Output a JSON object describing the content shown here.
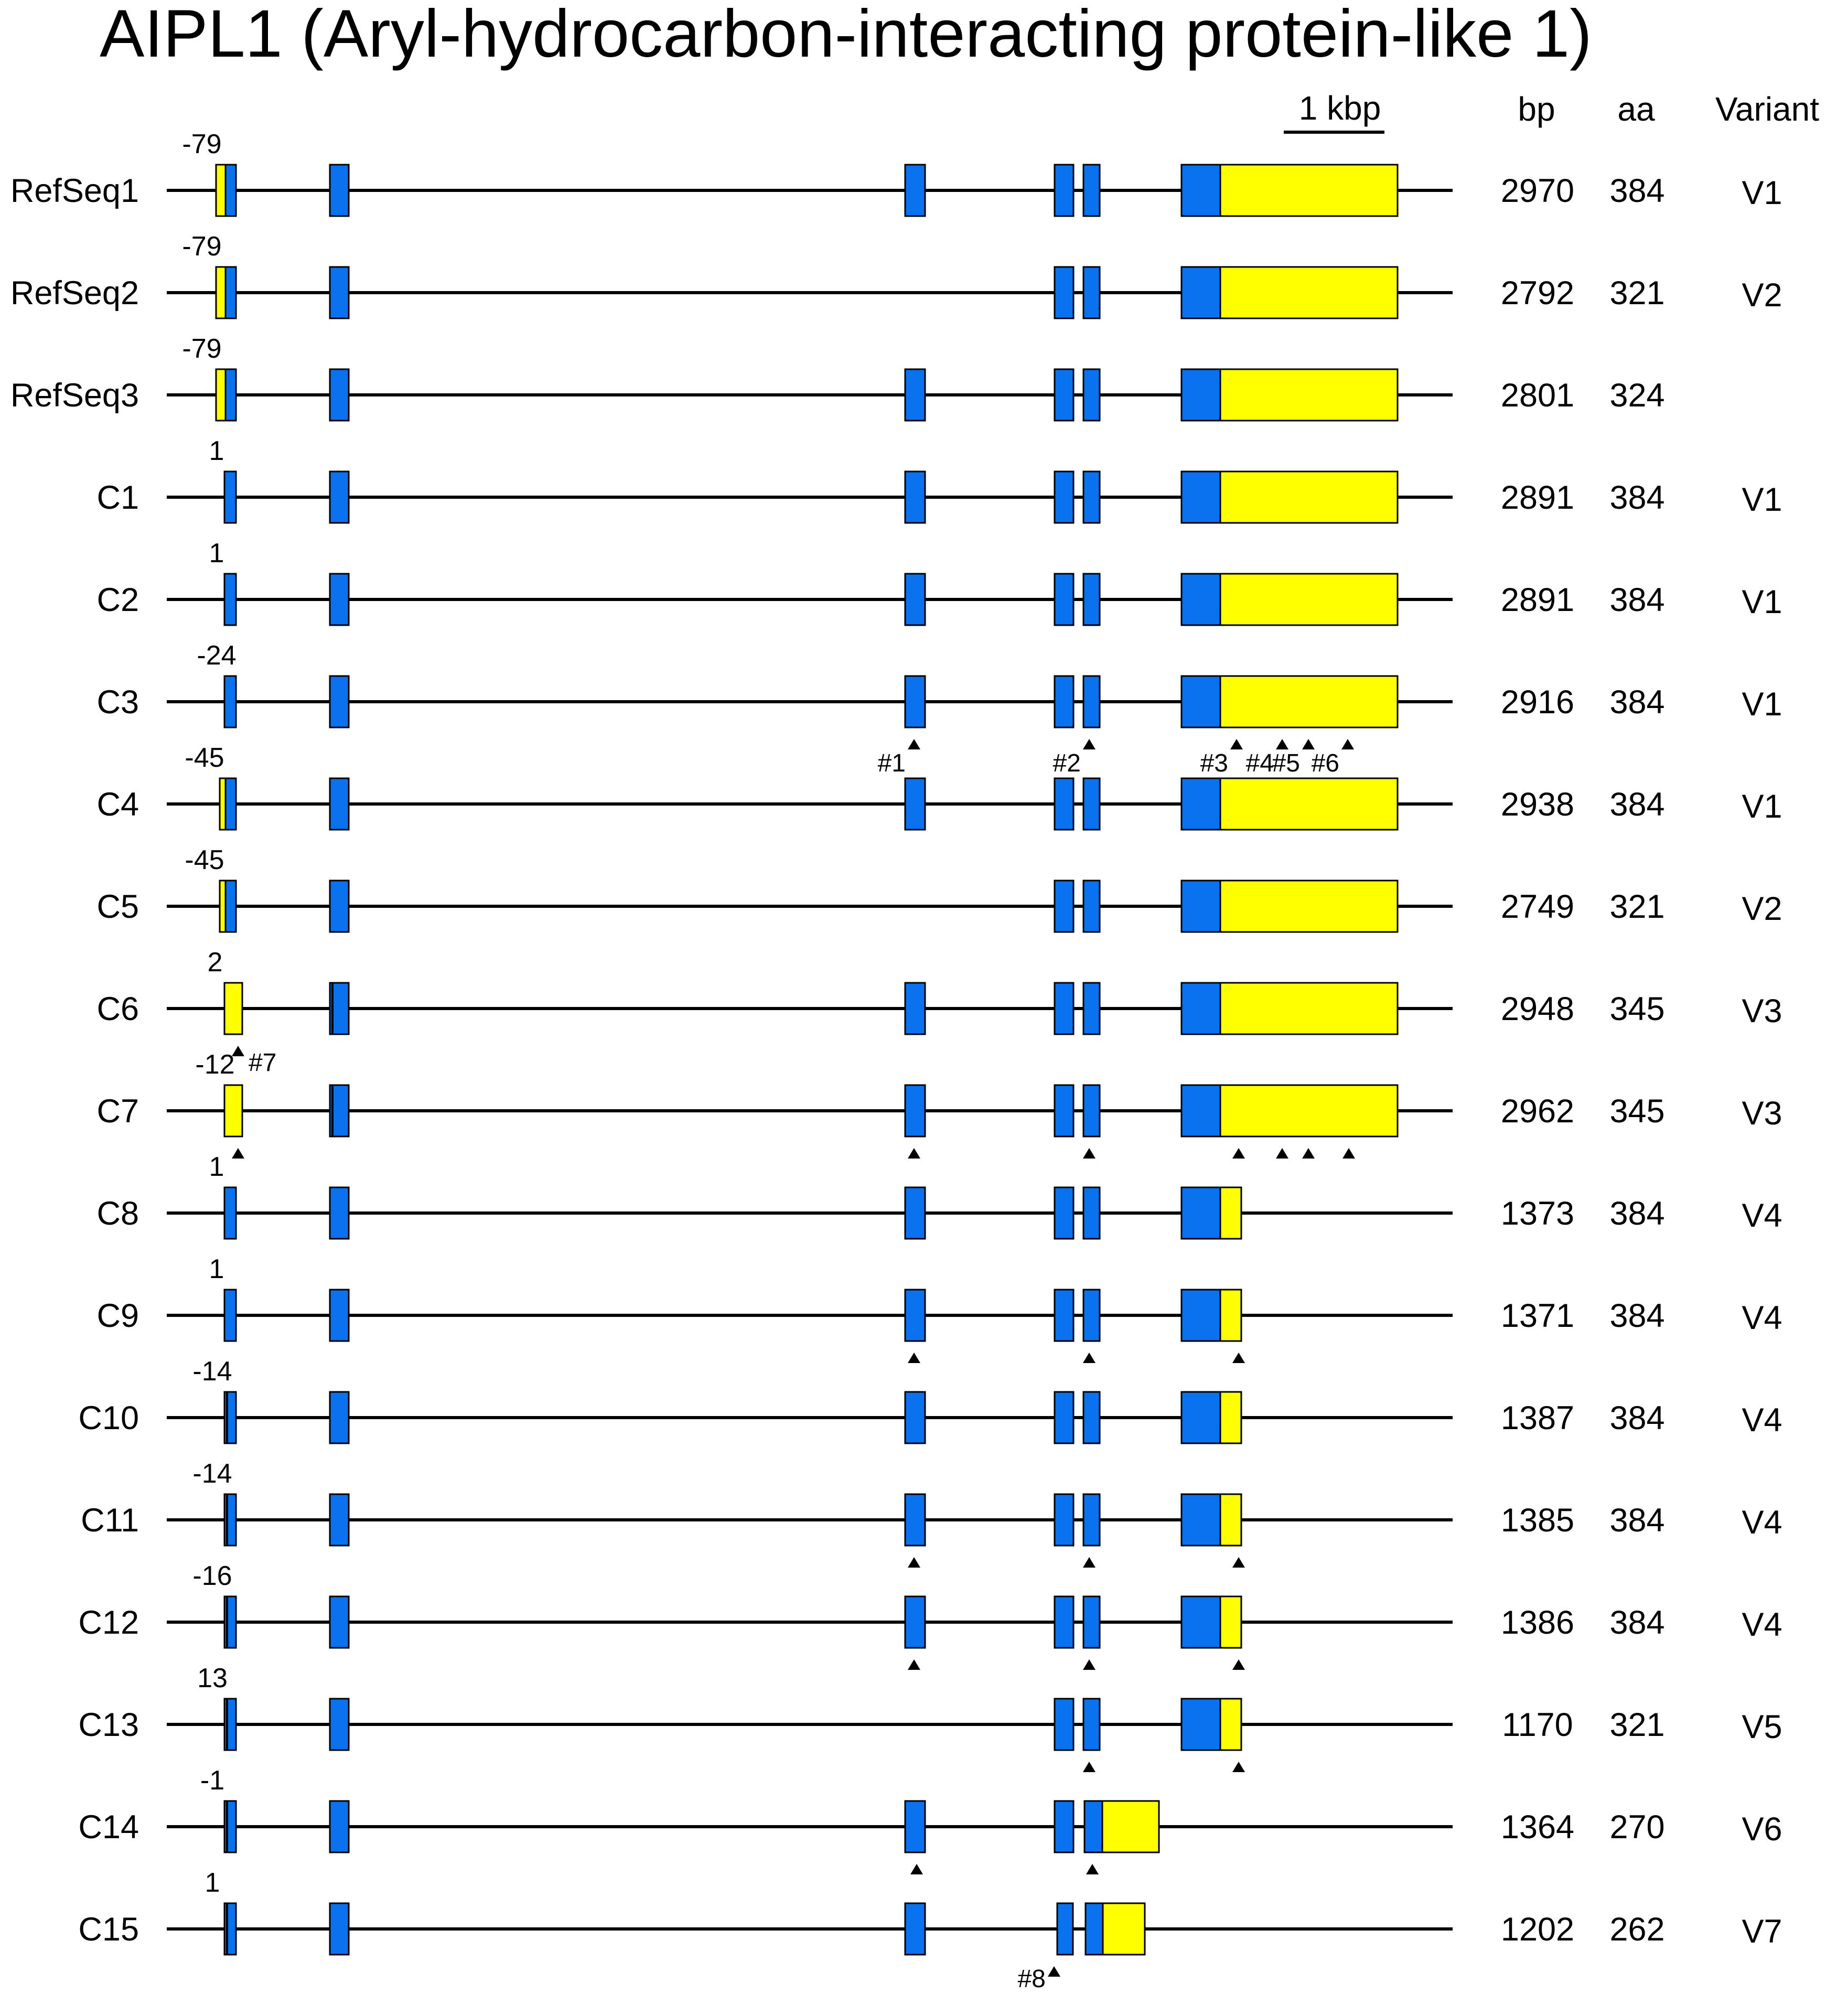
{
  "title": "AIPL1 (Aryl-hydrocarbon-interacting protein-like 1)",
  "scale_bar": {
    "label": "1 kbp"
  },
  "headers": {
    "bp": "bp",
    "aa": "aa",
    "variant": "Variant"
  },
  "colors": {
    "exon_coding": "#0a72ee",
    "exon_utr": "#ffff00",
    "intron_line": "#000000"
  },
  "rows": [
    {
      "label": "RefSeq1",
      "start": "-79",
      "bp": "2970",
      "aa": "384",
      "variant": "V1",
      "first_exon": "utr_split",
      "exon2": true,
      "exon3": true,
      "last": "long"
    },
    {
      "label": "RefSeq2",
      "start": "-79",
      "bp": "2792",
      "aa": "321",
      "variant": "V2",
      "first_exon": "utr_split",
      "exon2": true,
      "exon3": false,
      "last": "long"
    },
    {
      "label": "RefSeq3",
      "start": "-79",
      "bp": "2801",
      "aa": "324",
      "variant": "",
      "first_exon": "utr_split",
      "exon2": false,
      "exon3": true,
      "last": "long"
    },
    {
      "label": "C1",
      "start": "1",
      "bp": "2891",
      "aa": "384",
      "variant": "V1",
      "first_exon": "blue",
      "exon2": true,
      "exon3": true,
      "last": "long"
    },
    {
      "label": "C2",
      "start": "1",
      "bp": "2891",
      "aa": "384",
      "variant": "V1",
      "first_exon": "blue",
      "exon2": true,
      "exon3": true,
      "last": "long"
    },
    {
      "label": "C3",
      "start": "-24",
      "bp": "2916",
      "aa": "384",
      "variant": "V1",
      "first_exon": "blue",
      "exon2": true,
      "exon3": true,
      "last": "long",
      "markers": [
        {
          "at": "e3",
          "label": "#1"
        },
        {
          "at": "e5",
          "label": "#2"
        },
        {
          "at": "l1",
          "label": "#3"
        },
        {
          "at": "l2",
          "label": "#4"
        },
        {
          "at": "l3",
          "label": "#5"
        },
        {
          "at": "l4",
          "label": "#6"
        }
      ]
    },
    {
      "label": "C4",
      "start": "-45",
      "bp": "2938",
      "aa": "384",
      "variant": "V1",
      "first_exon": "utr_thin",
      "exon2": true,
      "exon3": true,
      "last": "long"
    },
    {
      "label": "C5",
      "start": "-45",
      "bp": "2749",
      "aa": "321",
      "variant": "V2",
      "first_exon": "utr_thin",
      "exon2": true,
      "exon3": false,
      "last": "long"
    },
    {
      "label": "C6",
      "start": "2",
      "bp": "2948",
      "aa": "345",
      "variant": "V3",
      "first_exon": "yellow",
      "exon2": true,
      "exon3": true,
      "last": "long",
      "markers": [
        {
          "at": "e1",
          "label": "#7"
        }
      ]
    },
    {
      "label": "C7",
      "start": "-12",
      "bp": "2962",
      "aa": "345",
      "variant": "V3",
      "first_exon": "yellow",
      "exon2": true,
      "exon3": true,
      "last": "long",
      "markers": [
        {
          "at": "e1",
          "label": ""
        },
        {
          "at": "e3",
          "label": ""
        },
        {
          "at": "e5",
          "label": ""
        },
        {
          "at": "l1",
          "label": ""
        },
        {
          "at": "l2",
          "label": ""
        },
        {
          "at": "l3",
          "label": ""
        },
        {
          "at": "l5",
          "label": ""
        }
      ]
    },
    {
      "label": "C8",
      "start": "1",
      "bp": "1373",
      "aa": "384",
      "variant": "V4",
      "first_exon": "blue",
      "exon2": true,
      "exon3": true,
      "last": "short"
    },
    {
      "label": "C9",
      "start": "1",
      "bp": "1371",
      "aa": "384",
      "variant": "V4",
      "first_exon": "blue",
      "exon2": true,
      "exon3": true,
      "last": "short",
      "markers": [
        {
          "at": "e3",
          "label": ""
        },
        {
          "at": "e5",
          "label": ""
        },
        {
          "at": "s1",
          "label": ""
        }
      ]
    },
    {
      "label": "C10",
      "start": "-14",
      "bp": "1387",
      "aa": "384",
      "variant": "V4",
      "first_exon": "blue_dark",
      "exon2": true,
      "exon3": true,
      "last": "short"
    },
    {
      "label": "C11",
      "start": "-14",
      "bp": "1385",
      "aa": "384",
      "variant": "V4",
      "first_exon": "blue_dark",
      "exon2": true,
      "exon3": true,
      "last": "short",
      "markers": [
        {
          "at": "e3",
          "label": ""
        },
        {
          "at": "e5",
          "label": ""
        },
        {
          "at": "s1",
          "label": ""
        }
      ]
    },
    {
      "label": "C12",
      "start": "-16",
      "bp": "1386",
      "aa": "384",
      "variant": "V4",
      "first_exon": "blue_dark",
      "exon2": true,
      "exon3": true,
      "last": "short",
      "markers": [
        {
          "at": "e3",
          "label": ""
        },
        {
          "at": "e5",
          "label": ""
        },
        {
          "at": "s1",
          "label": ""
        }
      ]
    },
    {
      "label": "C13",
      "start": "13",
      "bp": "1170",
      "aa": "321",
      "variant": "V5",
      "first_exon": "blue_dark",
      "exon2": true,
      "exon3": false,
      "last": "short",
      "markers": [
        {
          "at": "e5",
          "label": ""
        },
        {
          "at": "s1",
          "label": ""
        }
      ]
    },
    {
      "label": "C14",
      "start": "-1",
      "bp": "1364",
      "aa": "270",
      "variant": "V6",
      "first_exon": "blue_dark",
      "exon2": true,
      "exon3": true,
      "last": "c14",
      "markers": [
        {
          "at": "e3",
          "label": ""
        },
        {
          "at": "e5",
          "label": ""
        }
      ]
    },
    {
      "label": "C15",
      "start": "1",
      "bp": "1202",
      "aa": "262",
      "variant": "V7",
      "first_exon": "blue_dark",
      "exon2": true,
      "exon3": true,
      "last": "c15",
      "markers": [
        {
          "at": "e4",
          "label": "#8"
        }
      ]
    }
  ]
}
